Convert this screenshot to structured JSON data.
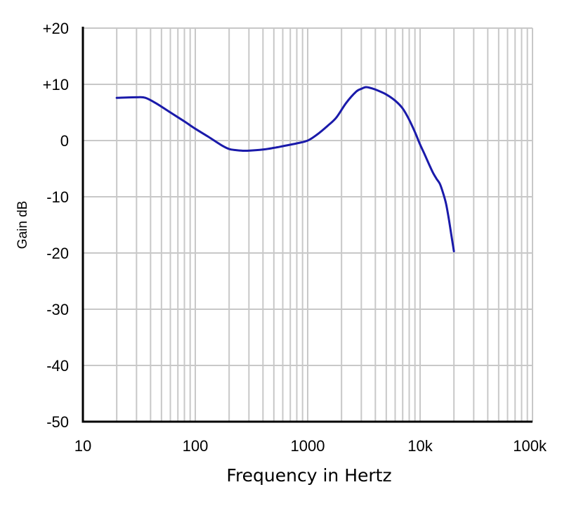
{
  "chart_data": {
    "type": "line",
    "title": "",
    "xlabel": "Frequency in Hertz",
    "ylabel": "Gain dB",
    "x_scale": "log",
    "xlim": [
      10,
      100000
    ],
    "ylim": [
      -50,
      20
    ],
    "x_ticks": [
      {
        "value": 10,
        "label": "10"
      },
      {
        "value": 100,
        "label": "100"
      },
      {
        "value": 1000,
        "label": "1000"
      },
      {
        "value": 10000,
        "label": "10k"
      },
      {
        "value": 100000,
        "label": "100k"
      }
    ],
    "y_ticks": [
      {
        "value": 20,
        "label": "+20"
      },
      {
        "value": 10,
        "label": "+10"
      },
      {
        "value": 0,
        "label": "0"
      },
      {
        "value": -10,
        "label": "-10"
      },
      {
        "value": -20,
        "label": "-20"
      },
      {
        "value": -30,
        "label": "-30"
      },
      {
        "value": -40,
        "label": "-40"
      },
      {
        "value": -50,
        "label": "-50"
      }
    ],
    "grid": true,
    "series": [
      {
        "color": "#1a1aaa",
        "x": [
          20,
          30,
          36,
          45,
          60,
          80,
          100,
          130,
          170,
          200,
          230,
          260,
          300,
          400,
          500,
          600,
          800,
          1000,
          1200,
          1500,
          1800,
          2200,
          2700,
          3000,
          3300,
          3700,
          4200,
          5000,
          6000,
          7000,
          8000,
          9000,
          10000,
          11000,
          12000,
          13000,
          14000,
          15000,
          16000,
          17000,
          18000,
          19000,
          20000
        ],
        "y": [
          7.6,
          7.7,
          7.6,
          6.6,
          5.0,
          3.4,
          2.1,
          0.7,
          -0.8,
          -1.5,
          -1.7,
          -1.8,
          -1.8,
          -1.6,
          -1.3,
          -1.0,
          -0.5,
          0.0,
          1.0,
          2.6,
          4.1,
          6.7,
          8.7,
          9.2,
          9.5,
          9.3,
          8.9,
          8.2,
          7.1,
          5.7,
          3.7,
          1.5,
          -0.7,
          -2.5,
          -4.2,
          -5.7,
          -6.8,
          -7.7,
          -9.3,
          -11.2,
          -13.9,
          -16.9,
          -19.7
        ]
      }
    ]
  }
}
